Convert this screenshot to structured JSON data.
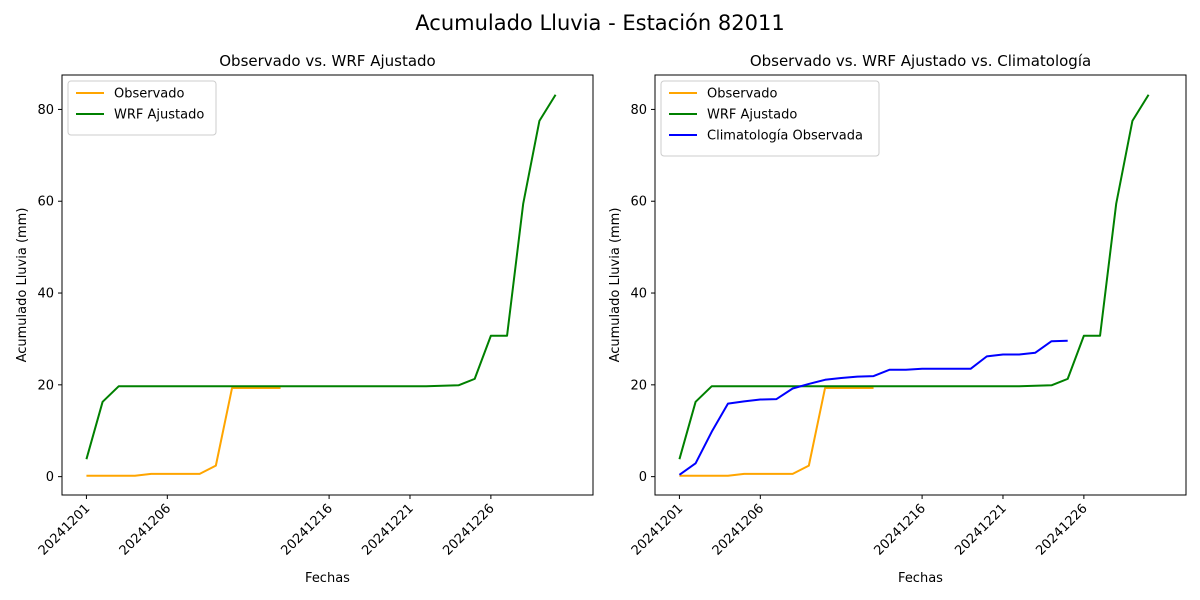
{
  "figure": {
    "suptitle": "Acumulado Lluvia - Estación 82011"
  },
  "chart_data": [
    {
      "type": "line",
      "title": "Observado vs. WRF Ajustado",
      "xlabel": "Fechas",
      "ylabel": "Acumulado Lluvia (mm)",
      "x": [
        "20241201",
        "20241202",
        "20241203",
        "20241204",
        "20241205",
        "20241206",
        "20241207",
        "20241208",
        "20241209",
        "20241210",
        "20241211",
        "20241212",
        "20241213",
        "20241214",
        "20241215",
        "20241216",
        "20241217",
        "20241218",
        "20241219",
        "20241220",
        "20241221",
        "20241222",
        "20241223",
        "20241224",
        "20241225",
        "20241226",
        "20241227",
        "20241228",
        "20241229",
        "20241230",
        "20241231"
      ],
      "xticks": [
        "20241201",
        "20241206",
        "20241216",
        "20241221",
        "20241226"
      ],
      "yticks": [
        0,
        20,
        40,
        60,
        80
      ],
      "ylim": [
        -4,
        87.5
      ],
      "legend_position": "upper-left",
      "series": [
        {
          "name": "Observado",
          "color": "#ffa500",
          "values": [
            0.2,
            0.2,
            0.2,
            0.2,
            0.6,
            0.6,
            0.6,
            0.6,
            2.4,
            19.3,
            19.3,
            19.3,
            19.3,
            null,
            null,
            null,
            null,
            null,
            null,
            null,
            null,
            null,
            null,
            null,
            null,
            null,
            null,
            null,
            null,
            null,
            null
          ]
        },
        {
          "name": "WRF Ajustado",
          "color": "#008000",
          "values": [
            3.8,
            16.3,
            19.7,
            19.7,
            19.7,
            19.7,
            19.7,
            19.7,
            19.7,
            19.7,
            19.7,
            19.7,
            19.7,
            19.7,
            19.7,
            19.7,
            19.7,
            19.7,
            19.7,
            19.7,
            19.7,
            19.7,
            19.8,
            19.9,
            21.3,
            30.7,
            30.7,
            59.5,
            77.5,
            83.2,
            null
          ]
        }
      ]
    },
    {
      "type": "line",
      "title": "Observado vs. WRF Ajustado vs. Climatología",
      "xlabel": "Fechas",
      "ylabel": "Acumulado Lluvia (mm)",
      "x": [
        "20241201",
        "20241202",
        "20241203",
        "20241204",
        "20241205",
        "20241206",
        "20241207",
        "20241208",
        "20241209",
        "20241210",
        "20241211",
        "20241212",
        "20241213",
        "20241214",
        "20241215",
        "20241216",
        "20241217",
        "20241218",
        "20241219",
        "20241220",
        "20241221",
        "20241222",
        "20241223",
        "20241224",
        "20241225",
        "20241226",
        "20241227",
        "20241228",
        "20241229",
        "20241230",
        "20241231"
      ],
      "xticks": [
        "20241201",
        "20241206",
        "20241216",
        "20241221",
        "20241226"
      ],
      "yticks": [
        0,
        20,
        40,
        60,
        80
      ],
      "ylim": [
        -4,
        87.5
      ],
      "legend_position": "upper-left",
      "series": [
        {
          "name": "Observado",
          "color": "#ffa500",
          "values": [
            0.2,
            0.2,
            0.2,
            0.2,
            0.6,
            0.6,
            0.6,
            0.6,
            2.4,
            19.3,
            19.3,
            19.3,
            19.3,
            null,
            null,
            null,
            null,
            null,
            null,
            null,
            null,
            null,
            null,
            null,
            null,
            null,
            null,
            null,
            null,
            null,
            null
          ]
        },
        {
          "name": "WRF Ajustado",
          "color": "#008000",
          "values": [
            3.8,
            16.3,
            19.7,
            19.7,
            19.7,
            19.7,
            19.7,
            19.7,
            19.7,
            19.7,
            19.7,
            19.7,
            19.7,
            19.7,
            19.7,
            19.7,
            19.7,
            19.7,
            19.7,
            19.7,
            19.7,
            19.7,
            19.8,
            19.9,
            21.3,
            30.7,
            30.7,
            59.5,
            77.5,
            83.2,
            null
          ]
        },
        {
          "name": "Climatología Observada",
          "color": "#0000ff",
          "values": [
            0.4,
            2.9,
            9.8,
            15.9,
            16.4,
            16.8,
            16.9,
            19.2,
            20.2,
            21.1,
            21.5,
            21.8,
            21.9,
            23.3,
            23.3,
            23.5,
            23.5,
            23.5,
            23.5,
            26.2,
            26.6,
            26.6,
            27.0,
            29.5,
            29.6,
            null,
            null,
            null,
            null,
            null,
            null
          ]
        }
      ]
    }
  ]
}
